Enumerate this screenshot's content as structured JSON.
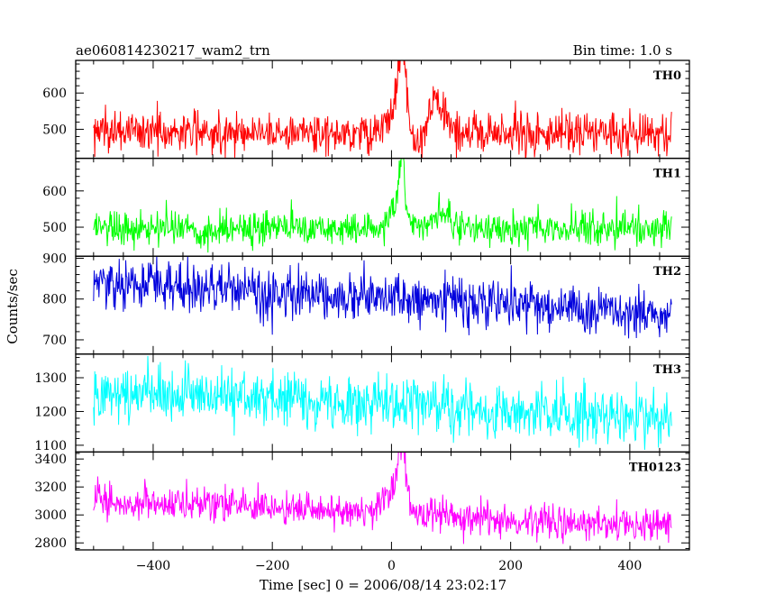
{
  "chart_data": {
    "type": "line",
    "title": "ae060814230217_wam2_trn",
    "subtitle": "Bin time: 1.0 s",
    "xlabel": "Time [sec] 0 = 2006/08/14 23:02:17",
    "ylabel": "Counts/sec",
    "xlim": [
      -530,
      500
    ],
    "xticks": [
      -400,
      -200,
      0,
      200,
      400
    ],
    "x_data_range": [
      -500,
      470
    ],
    "bin_time": 1.0,
    "grid": false,
    "panels": [
      {
        "name": "TH0",
        "color": "#ff0000",
        "ylim": [
          420,
          690
        ],
        "yticks": [
          500,
          600
        ],
        "baseline": [
          [
            -500,
            495
          ],
          [
            -200,
            492
          ],
          [
            0,
            490
          ],
          [
            200,
            490
          ],
          [
            470,
            492
          ]
        ],
        "noise_sd": 28,
        "features": [
          {
            "x": 8,
            "peak": 560,
            "width": 14
          },
          {
            "x": 18,
            "peak": 680,
            "width": 6
          },
          {
            "x": 45,
            "peak": 440,
            "width": 10
          },
          {
            "x": 75,
            "peak": 575,
            "width": 14
          }
        ]
      },
      {
        "name": "TH1",
        "color": "#00ff00",
        "ylim": [
          420,
          690
        ],
        "yticks": [
          500,
          600
        ],
        "baseline": [
          [
            -500,
            500
          ],
          [
            -200,
            497
          ],
          [
            0,
            497
          ],
          [
            200,
            495
          ],
          [
            470,
            500
          ]
        ],
        "noise_sd": 24,
        "features": [
          {
            "x": 10,
            "peak": 565,
            "width": 10
          },
          {
            "x": 18,
            "peak": 680,
            "width": 4
          },
          {
            "x": 80,
            "peak": 530,
            "width": 20
          }
        ]
      },
      {
        "name": "TH2",
        "color": "#0000dd",
        "ylim": [
          665,
          905
        ],
        "yticks": [
          700,
          800,
          900
        ],
        "baseline": [
          [
            -500,
            840
          ],
          [
            -200,
            815
          ],
          [
            0,
            805
          ],
          [
            200,
            785
          ],
          [
            470,
            765
          ]
        ],
        "noise_sd": 30,
        "features": []
      },
      {
        "name": "TH3",
        "color": "#00ffff",
        "ylim": [
          1080,
          1370
        ],
        "yticks": [
          1100,
          1200,
          1300
        ],
        "baseline": [
          [
            -500,
            1265
          ],
          [
            -200,
            1240
          ],
          [
            0,
            1225
          ],
          [
            200,
            1200
          ],
          [
            470,
            1180
          ]
        ],
        "noise_sd": 40,
        "features": []
      },
      {
        "name": "TH0123",
        "color": "#ff00ff",
        "ylim": [
          2750,
          3450
        ],
        "yticks": [
          2800,
          3000,
          3200,
          3400
        ],
        "baseline": [
          [
            -500,
            3100
          ],
          [
            -200,
            3050
          ],
          [
            0,
            3030
          ],
          [
            100,
            2990
          ],
          [
            200,
            2970
          ],
          [
            470,
            2920
          ]
        ],
        "noise_sd": 62,
        "features": [
          {
            "x": 5,
            "peak": 3200,
            "width": 15
          },
          {
            "x": 18,
            "peak": 3420,
            "width": 6
          }
        ]
      }
    ]
  }
}
